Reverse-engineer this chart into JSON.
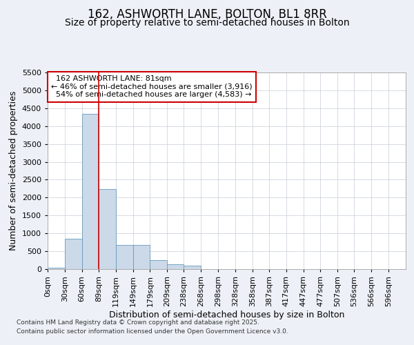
{
  "title": "162, ASHWORTH LANE, BOLTON, BL1 8RR",
  "subtitle": "Size of property relative to semi-detached houses in Bolton",
  "xlabel": "Distribution of semi-detached houses by size in Bolton",
  "ylabel": "Number of semi-detached properties",
  "footer_line1": "Contains HM Land Registry data © Crown copyright and database right 2025.",
  "footer_line2": "Contains public sector information licensed under the Open Government Licence v3.0.",
  "property_label": "162 ASHWORTH LANE: 81sqm",
  "pct_smaller": 46,
  "pct_larger": 54,
  "n_smaller": 3916,
  "n_larger": 4583,
  "bin_labels": [
    "0sqm",
    "30sqm",
    "60sqm",
    "89sqm",
    "119sqm",
    "149sqm",
    "179sqm",
    "209sqm",
    "238sqm",
    "268sqm",
    "298sqm",
    "328sqm",
    "358sqm",
    "387sqm",
    "417sqm",
    "447sqm",
    "477sqm",
    "507sqm",
    "536sqm",
    "566sqm",
    "596sqm"
  ],
  "bin_edges": [
    0,
    30,
    60,
    89,
    119,
    149,
    179,
    209,
    238,
    268,
    298,
    328,
    358,
    387,
    417,
    447,
    477,
    507,
    536,
    566,
    596
  ],
  "bar_values": [
    30,
    840,
    4340,
    2230,
    670,
    670,
    250,
    130,
    90,
    0,
    0,
    0,
    0,
    0,
    0,
    0,
    0,
    0,
    0,
    0
  ],
  "bar_color": "#ccd9e8",
  "bar_edgecolor": "#6699bb",
  "redline_x": 89,
  "ylim": [
    0,
    5500
  ],
  "yticks": [
    0,
    500,
    1000,
    1500,
    2000,
    2500,
    3000,
    3500,
    4000,
    4500,
    5000,
    5500
  ],
  "bg_color": "#edf1f7",
  "plot_bg_color": "#ffffff",
  "grid_color": "#c5cdd8",
  "annotation_box_edgecolor": "#cc0000",
  "title_fontsize": 12,
  "subtitle_fontsize": 10,
  "axis_label_fontsize": 9,
  "tick_fontsize": 8,
  "annotation_fontsize": 8
}
